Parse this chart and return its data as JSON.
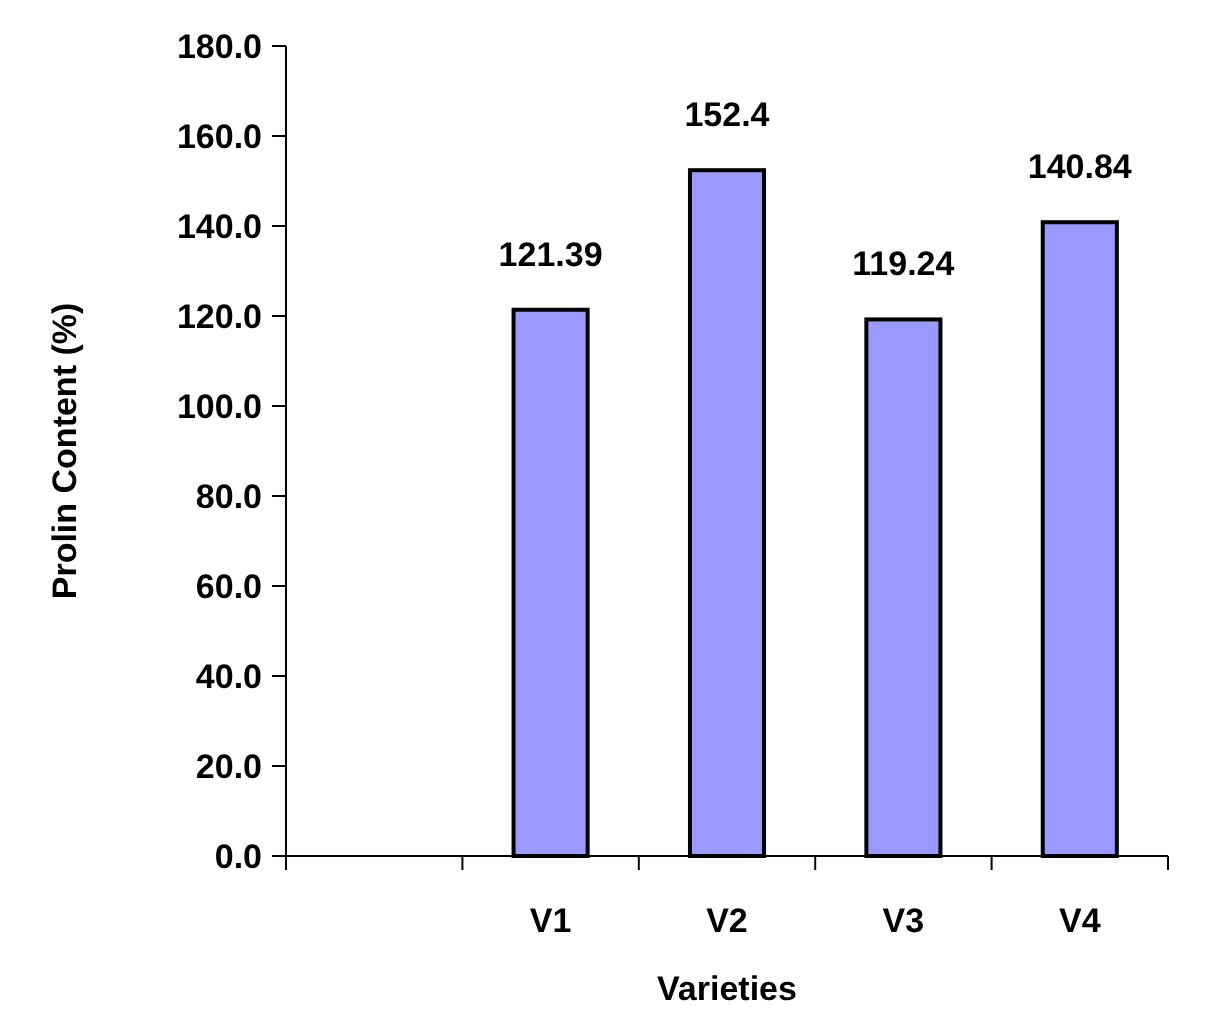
{
  "chart_data": {
    "type": "bar",
    "xlabel": "Varieties",
    "ylabel": "Prolin Content  (%)",
    "categories": [
      null,
      "V1",
      "V2",
      "V3",
      "V4"
    ],
    "values": [
      null,
      121.39,
      152.4,
      119.24,
      140.84
    ],
    "color": "#9999ff",
    "ylim": [
      0,
      180
    ],
    "yticks": [
      {
        "value": 0,
        "label": "0.0"
      },
      {
        "value": 20,
        "label": "20.0"
      },
      {
        "value": 40,
        "label": "40.0"
      },
      {
        "value": 60,
        "label": "60.0"
      },
      {
        "value": 80,
        "label": "80.0"
      },
      {
        "value": 100,
        "label": "100.0"
      },
      {
        "value": 120,
        "label": "120.0"
      },
      {
        "value": 140,
        "label": "140.0"
      },
      {
        "value": 160,
        "label": "160.0"
      },
      {
        "value": 180,
        "label": "180.0"
      }
    ],
    "data_labels": true
  }
}
